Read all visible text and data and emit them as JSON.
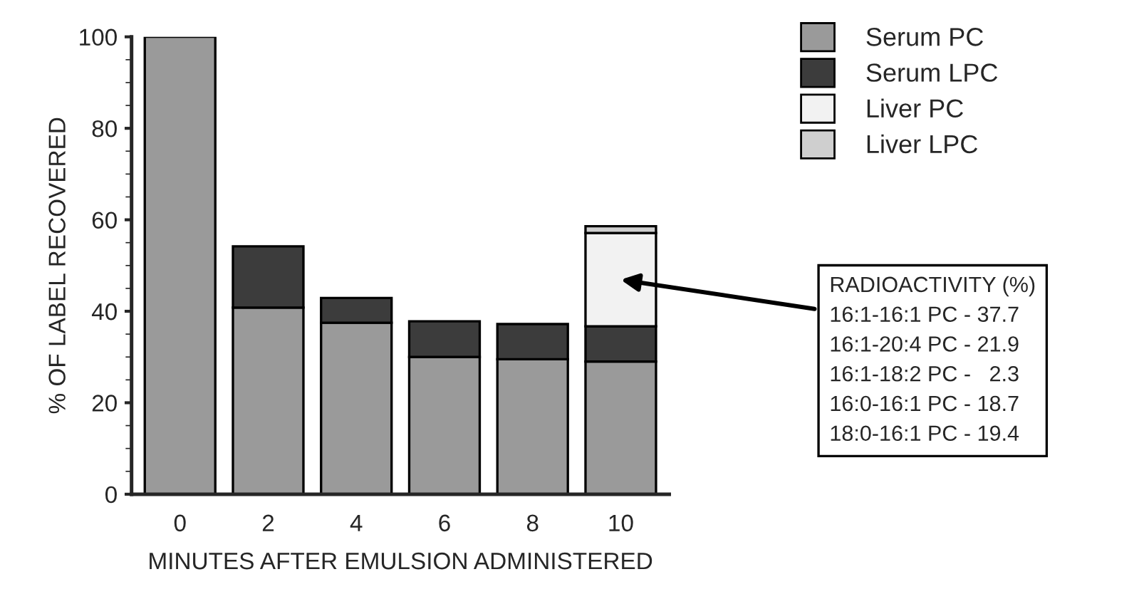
{
  "chart_data": {
    "type": "bar",
    "stacked": true,
    "xlabel": "MINUTES AFTER EMULSION ADMINISTERED",
    "ylabel": "% OF LABEL RECOVERED",
    "categories": [
      "0",
      "2",
      "4",
      "6",
      "8",
      "10"
    ],
    "series": [
      {
        "name": "Serum PC",
        "color": "#9a9a9a",
        "values": [
          100,
          40.8,
          37.5,
          30,
          29.5,
          29
        ]
      },
      {
        "name": "Serum LPC",
        "color": "#3c3c3c",
        "values": [
          null,
          13.4,
          5.4,
          7.8,
          7.7,
          7.7
        ]
      },
      {
        "name": "Liver PC",
        "color": "#f2f2f2",
        "values": [
          null,
          null,
          null,
          null,
          null,
          20.4
        ]
      },
      {
        "name": "Liver LPC",
        "color": "#cfcfcf",
        "values": [
          null,
          null,
          null,
          null,
          null,
          1.5
        ]
      }
    ],
    "ylim": [
      0,
      100
    ],
    "yticks": [
      0,
      20,
      40,
      60,
      80,
      100
    ],
    "grid": false,
    "legend": "top right",
    "annotations": [
      "RADIOACTIVITY (%)\n16:1-16:1 PC - 37.7\n16:1-20:4 PC - 21.9\n16:1-18:2 PC -   2.3\n16:0-16:1 PC - 18.7\n18:0-16:1 PC - 19.4"
    ]
  }
}
